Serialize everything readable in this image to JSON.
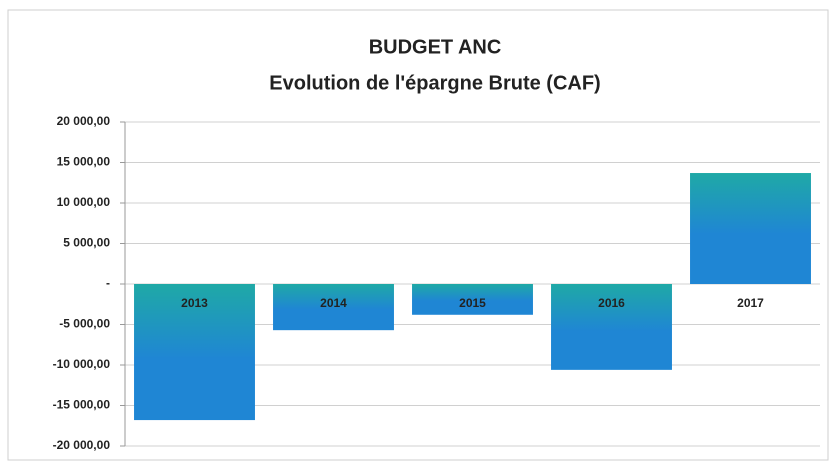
{
  "chart_data": {
    "type": "bar",
    "title": "BUDGET ANC",
    "subtitle": "Evolution de l'épargne Brute (CAF)",
    "categories": [
      "2013",
      "2014",
      "2015",
      "2016",
      "2017"
    ],
    "values": [
      -16800,
      -5700,
      -3800,
      -10600,
      13700
    ],
    "color": "#1f86d4",
    "ylim": [
      -20000,
      20000
    ],
    "yticks": [
      {
        "value": -20000,
        "label": "-20 000,00"
      },
      {
        "value": -15000,
        "label": "-15 000,00"
      },
      {
        "value": -10000,
        "label": "-10 000,00"
      },
      {
        "value": -5000,
        "label": "-5 000,00"
      },
      {
        "value": 0,
        "label": "-"
      },
      {
        "value": 5000,
        "label": "5 000,00"
      },
      {
        "value": 10000,
        "label": "10 000,00"
      },
      {
        "value": 15000,
        "label": "15 000,00"
      },
      {
        "value": 20000,
        "label": "20 000,00"
      }
    ],
    "grid": true
  }
}
